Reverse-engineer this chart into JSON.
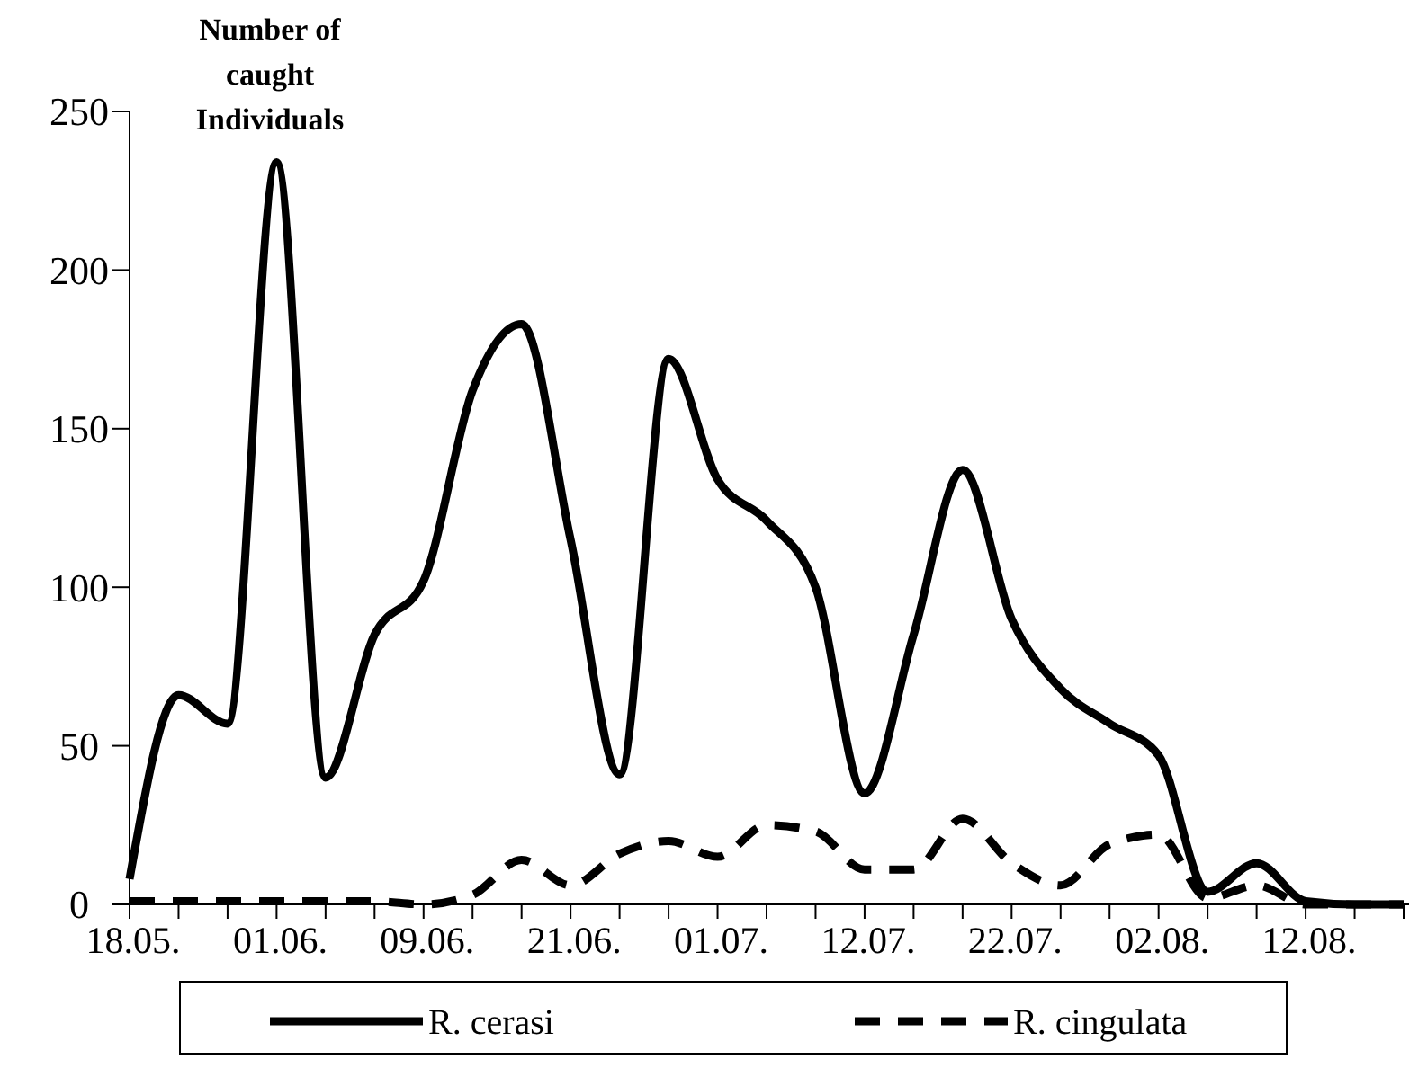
{
  "chart_data": {
    "type": "line",
    "ylabel": "Number of caught Individuals",
    "categories": [
      "18.05.",
      null,
      null,
      "01.06.",
      null,
      null,
      "09.06.",
      null,
      null,
      "21.06.",
      null,
      null,
      "01.07.",
      null,
      null,
      "12.07.",
      null,
      null,
      "22.07.",
      null,
      null,
      "02.08.",
      null,
      null,
      "12.08.",
      null,
      null
    ],
    "series": [
      {
        "name": "R. cerasi",
        "color": "#000000",
        "line_style": "solid",
        "values": [
          8,
          66,
          57,
          234,
          40,
          85,
          102,
          162,
          183,
          115,
          41,
          172,
          134,
          121,
          100,
          35,
          85,
          137,
          90,
          68,
          57,
          47,
          4,
          13,
          1,
          0,
          0
        ]
      },
      {
        "name": "R. cingulata",
        "color": "#000000",
        "line_style": "dashed",
        "values": [
          1,
          1,
          1,
          1,
          1,
          1,
          0,
          3,
          14,
          6,
          16,
          20,
          15,
          25,
          23,
          11,
          11,
          27,
          13,
          6,
          19,
          22,
          2,
          6,
          0,
          0,
          0
        ]
      }
    ],
    "ylim": [
      0,
      250
    ],
    "yticks": [
      0,
      50,
      100,
      150,
      200,
      250
    ],
    "grid": false,
    "legend": "bottom",
    "marker": "none"
  }
}
